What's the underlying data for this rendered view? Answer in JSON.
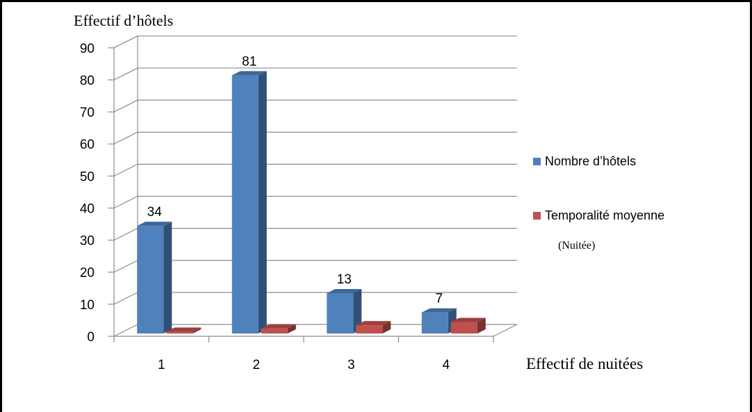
{
  "chart_data": {
    "type": "bar",
    "ylabel": "Effectif d’hôtels",
    "xlabel": "Effectif de nuitées",
    "categories": [
      "1",
      "2",
      "3",
      "4"
    ],
    "ylim": [
      0,
      90
    ],
    "yticks": [
      0,
      10,
      20,
      30,
      40,
      50,
      60,
      70,
      80,
      90
    ],
    "grid": true,
    "legend_position": "right",
    "series": [
      {
        "name": "Nombre d’hôtels",
        "values": [
          34,
          81,
          13,
          7
        ],
        "color": "#4f81bd",
        "show_labels": true
      },
      {
        "name": "Temporalité moyenne",
        "name_note": "(Nuitée)",
        "values": [
          1,
          2,
          3,
          4
        ],
        "color": "#c0504d",
        "show_labels": false
      }
    ]
  }
}
